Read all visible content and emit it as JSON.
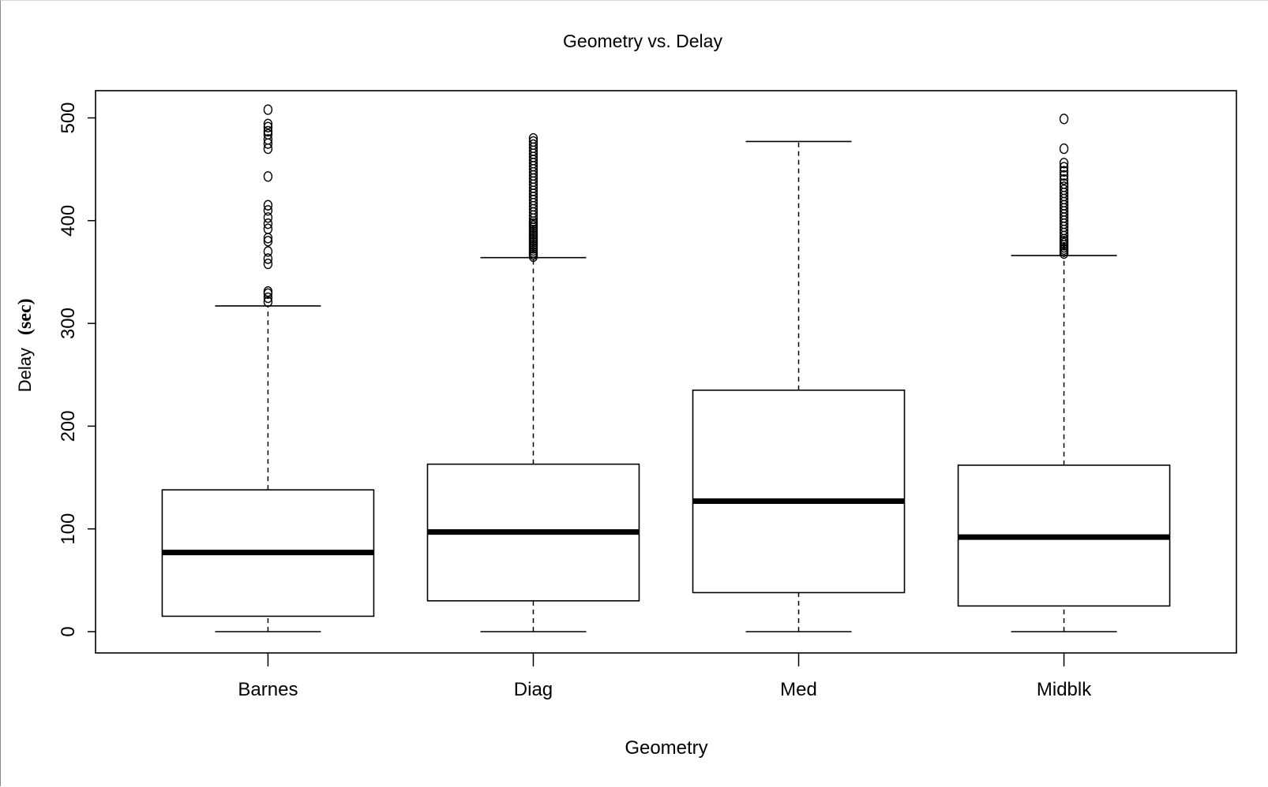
{
  "chart_data": {
    "type": "box",
    "title": "Geometry vs. Delay",
    "xlabel": "Geometry",
    "ylabel": "Delay",
    "ylabel_unit": "(sec)",
    "ylim": [
      -20,
      527
    ],
    "yticks": [
      0,
      100,
      200,
      300,
      400,
      500
    ],
    "categories": [
      "Barnes",
      "Diag",
      "Med",
      "Midblk"
    ],
    "series": [
      {
        "category": "Barnes",
        "min": 0,
        "q1": 15,
        "median": 77,
        "q3": 138,
        "whisker_high": 317,
        "outliers": [
          321,
          325,
          329,
          331,
          358,
          363,
          370,
          380,
          383,
          392,
          397,
          403,
          410,
          415,
          443,
          470,
          475,
          479,
          484,
          487,
          491,
          494,
          508
        ]
      },
      {
        "category": "Diag",
        "min": 0,
        "q1": 30,
        "median": 97,
        "q3": 163,
        "whisker_high": 364,
        "outliers": [
          365,
          367,
          369,
          371,
          373,
          375,
          377,
          379,
          381,
          383,
          385,
          387,
          389,
          391,
          393,
          395,
          397,
          399,
          402,
          405,
          408,
          411,
          414,
          417,
          420,
          423,
          426,
          429,
          432,
          435,
          438,
          441,
          444,
          447,
          450,
          453,
          456,
          459,
          462,
          465,
          468,
          471,
          474,
          477,
          480
        ]
      },
      {
        "category": "Med",
        "min": 0,
        "q1": 38,
        "median": 127,
        "q3": 235,
        "whisker_high": 477,
        "outliers": []
      },
      {
        "category": "Midblk",
        "min": 0,
        "q1": 25,
        "median": 92,
        "q3": 162,
        "whisker_high": 366,
        "outliers": [
          368,
          370,
          372,
          374,
          376,
          378,
          380,
          382,
          385,
          388,
          391,
          394,
          397,
          400,
          403,
          406,
          409,
          412,
          415,
          418,
          421,
          424,
          427,
          430,
          433,
          436,
          440,
          444,
          448,
          452,
          456,
          470,
          499
        ]
      }
    ]
  }
}
